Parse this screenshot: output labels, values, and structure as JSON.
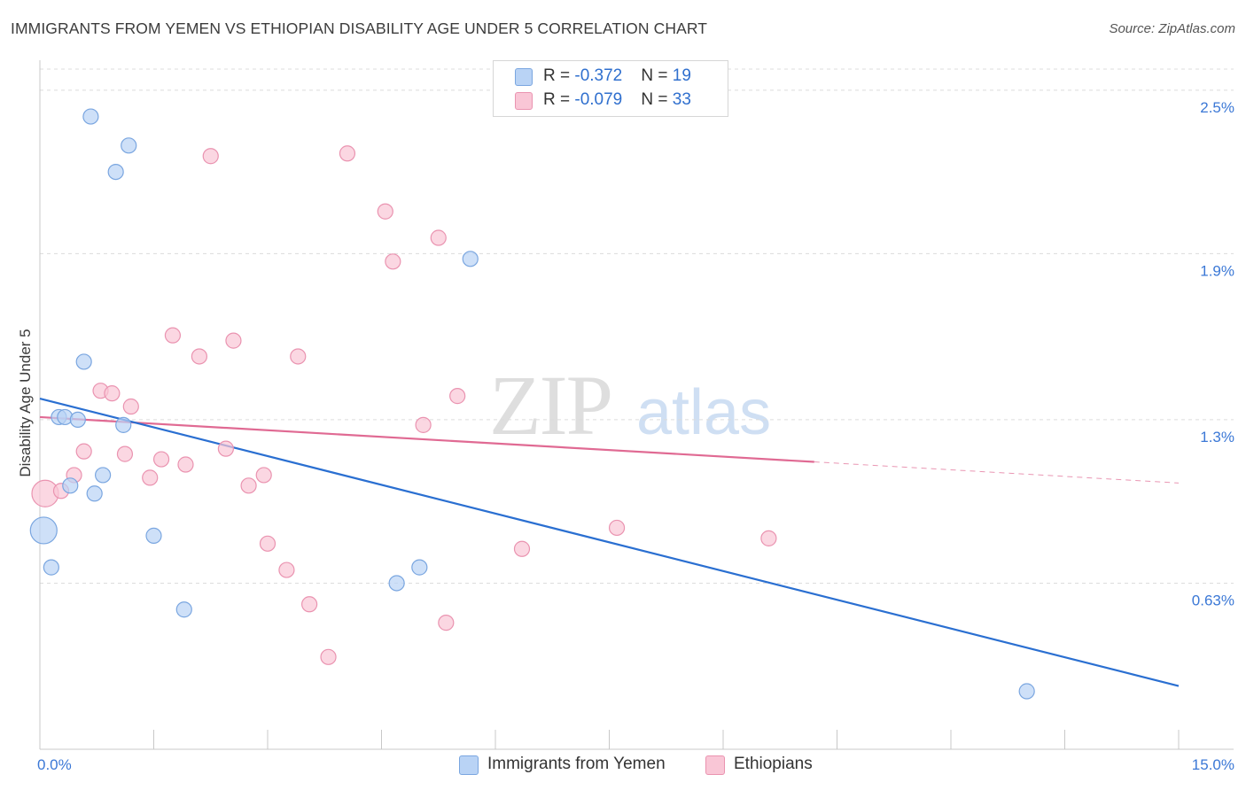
{
  "title": "IMMIGRANTS FROM YEMEN VS ETHIOPIAN DISABILITY AGE UNDER 5 CORRELATION CHART",
  "source": "Source: ZipAtlas.com",
  "watermark": {
    "zip": "ZIP",
    "atlas": "atlas"
  },
  "colors": {
    "blue_fill": "#b9d3f5",
    "blue_stroke": "#7aa6e0",
    "blue_line": "#2a6fd1",
    "pink_fill": "#f9c6d6",
    "pink_stroke": "#ea93b0",
    "pink_line": "#e06a93",
    "grid": "#dcdcdc",
    "tick_text": "#3b78d6"
  },
  "legend": {
    "rows": [
      {
        "r_label": "R = ",
        "r_value": "-0.372",
        "n_label": "N = ",
        "n_value": "19"
      },
      {
        "r_label": "R = ",
        "r_value": "-0.079",
        "n_label": "N = ",
        "n_value": "33"
      }
    ]
  },
  "chart_data": {
    "type": "scatter",
    "title": "IMMIGRANTS FROM YEMEN VS ETHIOPIAN DISABILITY AGE UNDER 5 CORRELATION CHART",
    "xlabel": "",
    "ylabel": "Disability Age Under 5",
    "xlim": [
      0,
      15
    ],
    "ylim": [
      0,
      2.58
    ],
    "x_ticks": [
      {
        "value": 0,
        "label": "0.0%"
      },
      {
        "value": 15,
        "label": "15.0%"
      }
    ],
    "x_minor_ticks": [
      0,
      1.5,
      3,
      4.5,
      6,
      7.5,
      9,
      10.5,
      12,
      13.5,
      15
    ],
    "y_ticks": [
      {
        "value": 0.63,
        "label": "0.63%"
      },
      {
        "value": 1.25,
        "label": "1.3%"
      },
      {
        "value": 1.88,
        "label": "1.9%"
      },
      {
        "value": 2.5,
        "label": "2.5%"
      }
    ],
    "grid": true,
    "legend_position": "top-center",
    "series": [
      {
        "name": "Immigrants from Yemen",
        "color": "#b9d3f5",
        "points": [
          {
            "x": 0.67,
            "y": 2.4
          },
          {
            "x": 1.17,
            "y": 2.29
          },
          {
            "x": 1.0,
            "y": 2.19
          },
          {
            "x": 5.67,
            "y": 1.86
          },
          {
            "x": 0.58,
            "y": 1.47
          },
          {
            "x": 0.25,
            "y": 1.26
          },
          {
            "x": 0.33,
            "y": 1.26
          },
          {
            "x": 0.5,
            "y": 1.25
          },
          {
            "x": 1.1,
            "y": 1.23
          },
          {
            "x": 0.83,
            "y": 1.04
          },
          {
            "x": 0.4,
            "y": 1.0
          },
          {
            "x": 0.72,
            "y": 0.97
          },
          {
            "x": 0.05,
            "y": 0.83,
            "size": "large"
          },
          {
            "x": 1.5,
            "y": 0.81
          },
          {
            "x": 0.15,
            "y": 0.69
          },
          {
            "x": 5.0,
            "y": 0.69
          },
          {
            "x": 4.7,
            "y": 0.63
          },
          {
            "x": 1.9,
            "y": 0.53
          },
          {
            "x": 13.0,
            "y": 0.22
          }
        ],
        "trend": {
          "x1": 0.0,
          "y1": 1.33,
          "x2": 15.0,
          "y2": 0.24
        }
      },
      {
        "name": "Ethiopians",
        "color": "#f9c6d6",
        "points": [
          {
            "x": 2.25,
            "y": 2.25
          },
          {
            "x": 4.05,
            "y": 2.26
          },
          {
            "x": 4.55,
            "y": 2.04
          },
          {
            "x": 5.25,
            "y": 1.94
          },
          {
            "x": 4.65,
            "y": 1.85
          },
          {
            "x": 1.75,
            "y": 1.57
          },
          {
            "x": 2.55,
            "y": 1.55
          },
          {
            "x": 2.1,
            "y": 1.49
          },
          {
            "x": 3.4,
            "y": 1.49
          },
          {
            "x": 0.8,
            "y": 1.36
          },
          {
            "x": 0.95,
            "y": 1.35
          },
          {
            "x": 5.5,
            "y": 1.34
          },
          {
            "x": 1.2,
            "y": 1.3
          },
          {
            "x": 5.05,
            "y": 1.23
          },
          {
            "x": 0.58,
            "y": 1.13
          },
          {
            "x": 1.12,
            "y": 1.12
          },
          {
            "x": 2.45,
            "y": 1.14
          },
          {
            "x": 1.6,
            "y": 1.1
          },
          {
            "x": 1.92,
            "y": 1.08
          },
          {
            "x": 0.45,
            "y": 1.04
          },
          {
            "x": 1.45,
            "y": 1.03
          },
          {
            "x": 2.95,
            "y": 1.04
          },
          {
            "x": 2.75,
            "y": 1.0
          },
          {
            "x": 0.07,
            "y": 0.97,
            "size": "large"
          },
          {
            "x": 0.28,
            "y": 0.98
          },
          {
            "x": 7.6,
            "y": 0.84
          },
          {
            "x": 9.6,
            "y": 0.8
          },
          {
            "x": 3.0,
            "y": 0.78
          },
          {
            "x": 6.35,
            "y": 0.76
          },
          {
            "x": 3.25,
            "y": 0.68
          },
          {
            "x": 3.55,
            "y": 0.55
          },
          {
            "x": 5.35,
            "y": 0.48
          },
          {
            "x": 3.8,
            "y": 0.35
          }
        ],
        "trend": {
          "x1": 0.0,
          "y1": 1.26,
          "x2": 10.2,
          "y2": 1.09
        },
        "trend_extension": {
          "x1": 10.2,
          "y1": 1.09,
          "x2": 15.0,
          "y2": 1.01
        }
      }
    ]
  }
}
